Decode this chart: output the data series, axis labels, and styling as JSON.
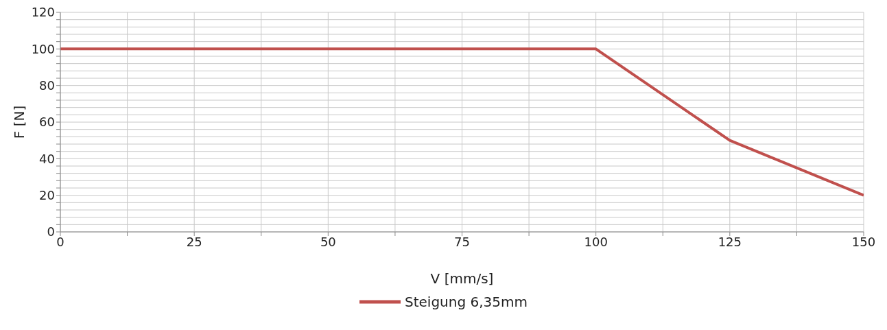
{
  "chart_data": {
    "type": "line",
    "xlabel": "V [mm/s]",
    "ylabel": "F [N]",
    "x": [
      0,
      100,
      125,
      150
    ],
    "series": [
      {
        "name": "Steigung 6,35mm",
        "color": "#c0504d",
        "values": [
          100,
          100,
          50,
          20
        ]
      }
    ],
    "xlim": [
      0,
      150
    ],
    "xticks": [
      0,
      {
        "value": 12.5,
        "label": null
      },
      25,
      {
        "value": 37.5,
        "label": null
      },
      50,
      {
        "value": 62.5,
        "label": null
      },
      75,
      {
        "value": 87.5,
        "label": null
      },
      100,
      {
        "value": 112.5,
        "label": null
      },
      125,
      {
        "value": 137.5,
        "label": null
      },
      150
    ],
    "ylim": [
      0,
      120
    ],
    "yticks": [
      0,
      {
        "value": 4,
        "label": null
      },
      {
        "value": 8,
        "label": null
      },
      {
        "value": 12,
        "label": null
      },
      {
        "value": 16,
        "label": null
      },
      20,
      {
        "value": 24,
        "label": null
      },
      {
        "value": 28,
        "label": null
      },
      {
        "value": 32,
        "label": null
      },
      {
        "value": 36,
        "label": null
      },
      40,
      {
        "value": 44,
        "label": null
      },
      {
        "value": 48,
        "label": null
      },
      {
        "value": 52,
        "label": null
      },
      {
        "value": 56,
        "label": null
      },
      60,
      {
        "value": 64,
        "label": null
      },
      {
        "value": 68,
        "label": null
      },
      {
        "value": 72,
        "label": null
      },
      {
        "value": 76,
        "label": null
      },
      80,
      {
        "value": 84,
        "label": null
      },
      {
        "value": 88,
        "label": null
      },
      {
        "value": 92,
        "label": null
      },
      {
        "value": 96,
        "label": null
      },
      100,
      {
        "value": 104,
        "label": null
      },
      {
        "value": 108,
        "label": null
      },
      {
        "value": 112,
        "label": null
      },
      {
        "value": 116,
        "label": null
      },
      120
    ],
    "grid": true,
    "legend": "bottom",
    "marker": "none",
    "line_style": "solid"
  }
}
